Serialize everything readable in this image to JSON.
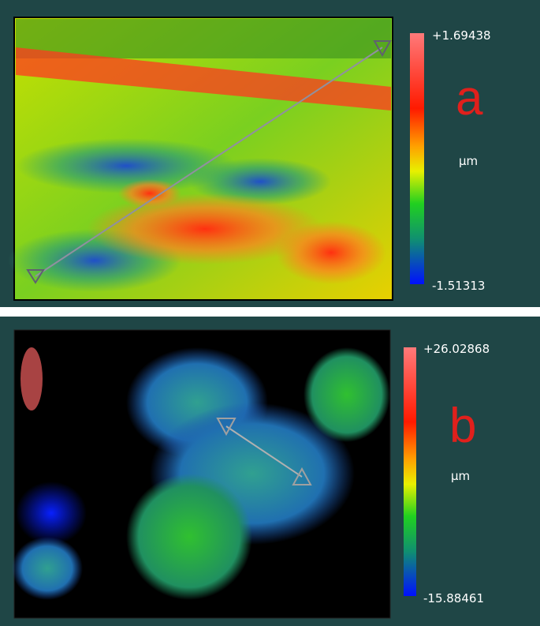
{
  "panels": [
    {
      "label": "a",
      "max": "+1.69438",
      "min": "-1.51313",
      "unit": "µm"
    },
    {
      "label": "b",
      "max": "+26.02868",
      "min": "-15.88461",
      "unit": "µm"
    }
  ]
}
